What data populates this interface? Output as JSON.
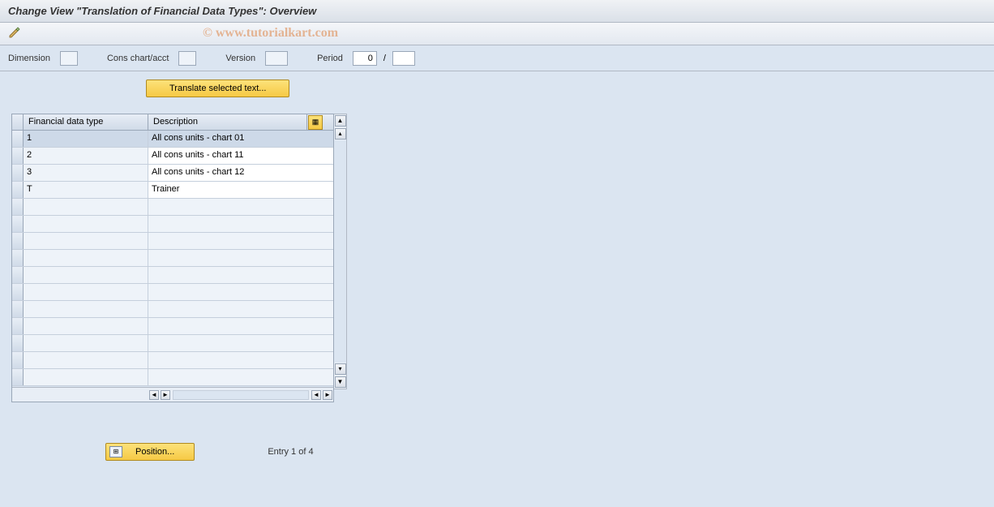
{
  "title": "Change View \"Translation of Financial Data Types\": Overview",
  "watermark": "© www.tutorialkart.com",
  "fields": {
    "dimension_label": "Dimension",
    "cons_chart_label": "Cons chart/acct",
    "version_label": "Version",
    "period_label": "Period",
    "period_value": "0",
    "period_sep": "/"
  },
  "translate_button": "Translate selected text...",
  "table": {
    "col1_header": "Financial data type",
    "col2_header": "Description",
    "rows": [
      {
        "type": "1",
        "desc": "All cons units - chart 01"
      },
      {
        "type": "2",
        "desc": "All cons units - chart 11"
      },
      {
        "type": "3",
        "desc": "All cons units - chart 12"
      },
      {
        "type": "T",
        "desc": "Trainer"
      }
    ],
    "empty_row_count": 11
  },
  "position_button": "Position...",
  "entry_text": "Entry 1 of 4",
  "colors": {
    "panel_bg": "#dbe5f1",
    "row_bg": "#eef3f9",
    "header_grad_top": "#e8eef6",
    "header_grad_bot": "#d0dbe8",
    "gold_top": "#fce27a",
    "gold_bot": "#f6c944",
    "border": "#9aa7b8"
  }
}
